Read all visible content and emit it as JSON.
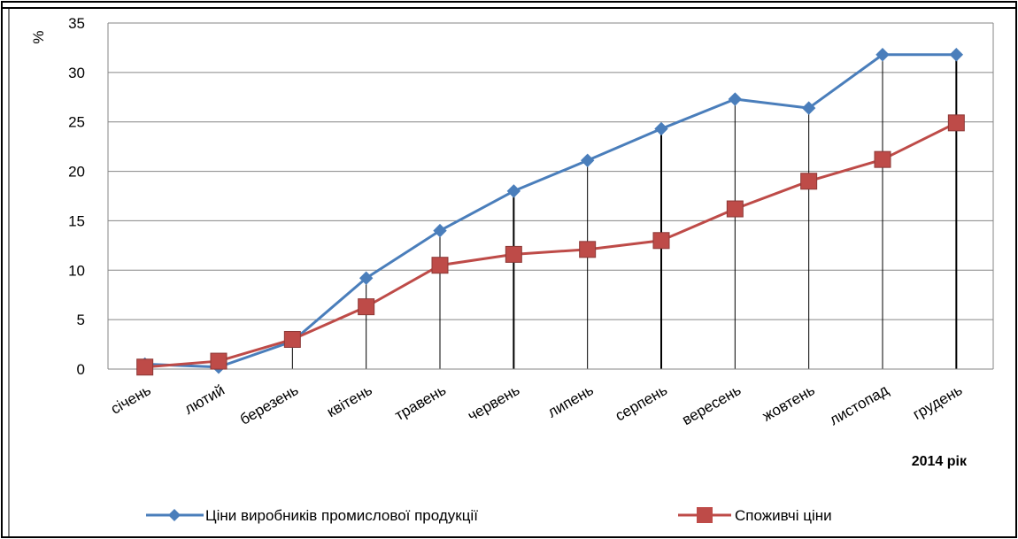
{
  "colors": {
    "producer": "#4a7ebb",
    "consumer": "#be4b48",
    "grid": "#868686",
    "axis": "#868686",
    "drop": "#000000"
  },
  "chart_data": {
    "type": "line",
    "ylabel": "%",
    "xlabel": "2014 рік",
    "ylim": [
      0,
      35
    ],
    "yticks": [
      0,
      5,
      10,
      15,
      20,
      25,
      30,
      35
    ],
    "grid": true,
    "legend_position": "bottom",
    "categories": [
      "січень",
      "лютий",
      "березень",
      "квітень",
      "травень",
      "червень",
      "липень",
      "серпень",
      "вересень",
      "жовтень",
      "листопад",
      "грудень"
    ],
    "series": [
      {
        "name": "Ціни виробників промислової продукції",
        "marker": "diamond",
        "values": [
          0.5,
          0.2,
          2.8,
          9.2,
          14.0,
          18.0,
          21.1,
          24.3,
          27.3,
          26.4,
          31.8,
          31.8
        ]
      },
      {
        "name": "Споживчі ціни",
        "marker": "square",
        "values": [
          0.2,
          0.8,
          3.0,
          6.3,
          10.5,
          11.6,
          12.1,
          13.0,
          16.2,
          19.0,
          21.2,
          24.9
        ]
      }
    ]
  }
}
